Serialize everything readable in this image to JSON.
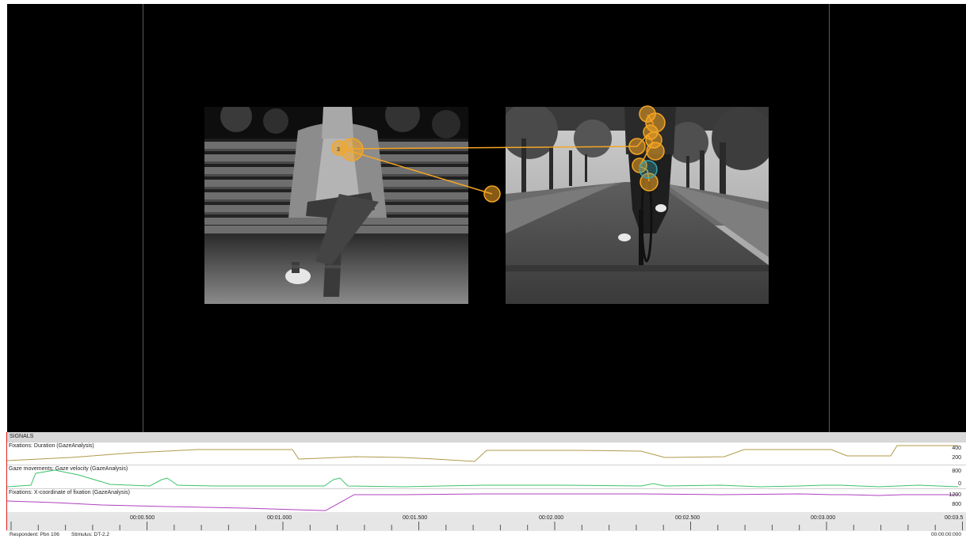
{
  "signals_header": "SIGNALS",
  "tracks": [
    {
      "label": "Fixations: Duration (GazeAnalysis)",
      "ticks": [
        "400",
        "200"
      ],
      "color": "#b09a4a"
    },
    {
      "label": "Gaze movements: Gaze velocity (GazeAnalysis)",
      "ticks": [
        "800",
        "0"
      ],
      "color": "#3cc36a"
    },
    {
      "label": "Fixations: X-coordinate of fixation (GazeAnalysis)",
      "ticks": [
        "1200",
        "800"
      ],
      "color": "#b040c0"
    }
  ],
  "timeline": {
    "labels": [
      "00:00.500",
      "00:01.000",
      "00:01.500",
      "00:02.000",
      "00:02.500",
      "00:03.000",
      "00:03.5"
    ]
  },
  "status": {
    "respondent": "Respondent: Pbn 106",
    "stimulus": "Stimulus: DT-2.2",
    "time": "00:00:00:000"
  },
  "fixation_labels": [
    "3"
  ],
  "colors": {
    "fixation": "#f5a623",
    "fixation_selected": "#3aa6b0",
    "stage": "#000000"
  }
}
